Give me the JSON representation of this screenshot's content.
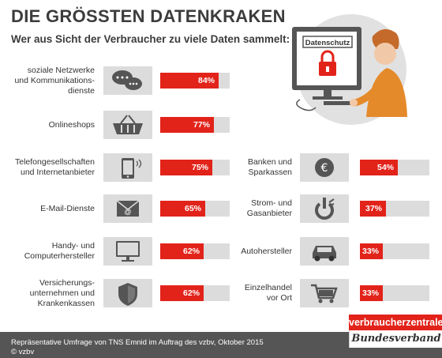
{
  "title": "DIE GRÖSSTEN DATENKRAKEN",
  "subtitle": "Wer aus Sicht der Verbraucher zu viele Daten sammelt:",
  "illustration": {
    "screen_text": "Datenschutz"
  },
  "colors": {
    "accent": "#e2231a",
    "bar_bg": "#dcdcdc",
    "footer_bg": "#555555",
    "text": "#3c3c3c"
  },
  "chart_data": {
    "type": "bar",
    "title": "DIE GRÖSSTEN DATENKRAKEN",
    "subtitle": "Wer aus Sicht der Verbraucher zu viele Daten sammelt:",
    "unit": "%",
    "ylim": [
      0,
      100
    ],
    "categories": [
      "soziale Netzwerke und Kommunikationsdienste",
      "Onlineshops",
      "Telefongesellschaften und Internetanbieter",
      "E-Mail-Dienste",
      "Handy- und Computerhersteller",
      "Versicherungsunternehmen und Krankenkassen",
      "Banken und Sparkassen",
      "Strom- und Gasanbieter",
      "Autohersteller",
      "Einzelhandel vor Ort"
    ],
    "values": [
      84,
      77,
      75,
      65,
      62,
      62,
      54,
      37,
      33,
      33
    ]
  },
  "items": [
    {
      "label": "soziale Netzwerke\nund Kommunikations-\ndienste",
      "value": 84,
      "display": "84%",
      "icon": "chat-bubble-icon",
      "column": "left"
    },
    {
      "label": "Onlineshops",
      "value": 77,
      "display": "77%",
      "icon": "shopping-basket-icon",
      "column": "left"
    },
    {
      "label": "Telefongesellschaften\nund Internetanbieter",
      "value": 75,
      "display": "75%",
      "icon": "smartphone-icon",
      "column": "left"
    },
    {
      "label": "E-Mail-Dienste",
      "value": 65,
      "display": "65%",
      "icon": "envelope-icon",
      "column": "left"
    },
    {
      "label": "Handy- und\nComputerhersteller",
      "value": 62,
      "display": "62%",
      "icon": "monitor-icon",
      "column": "left"
    },
    {
      "label": "Versicherungs-\nunternehmen und\nKrankenkassen",
      "value": 62,
      "display": "62%",
      "icon": "shield-icon",
      "column": "left"
    },
    {
      "label": "Banken und\nSparkassen",
      "value": 54,
      "display": "54%",
      "icon": "euro-icon",
      "column": "right"
    },
    {
      "label": "Strom- und\nGasanbieter",
      "value": 37,
      "display": "37%",
      "icon": "power-plug-icon",
      "column": "right"
    },
    {
      "label": "Autohersteller",
      "value": 33,
      "display": "33%",
      "icon": "car-icon",
      "column": "right"
    },
    {
      "label": "Einzelhandel\nvor Ort",
      "value": 33,
      "display": "33%",
      "icon": "shopping-cart-icon",
      "column": "right"
    }
  ],
  "footer": {
    "text": "Repräsentative Umfrage von TNS Emnid im Auftrag des vzbv, Oktober 2015\n© vzbv",
    "brand_top": "verbraucherzentrale",
    "brand_bottom": "Bundesverband"
  }
}
